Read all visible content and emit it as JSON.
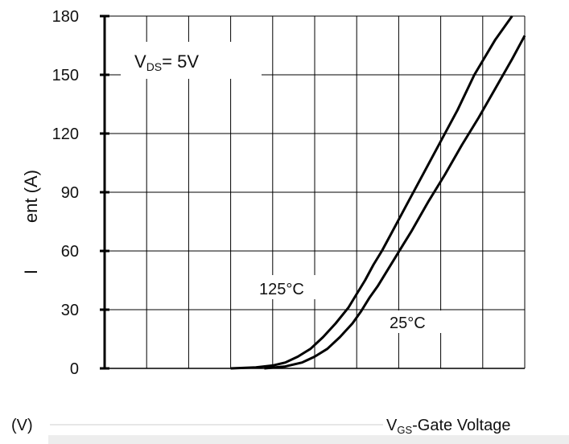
{
  "chart_data": {
    "type": "line",
    "ylabel": "ent (A)",
    "ylabel_subscript_symbol": "I",
    "xlabel_prefix": "(V)",
    "xlabel": "V",
    "xlabel_sub": "GS",
    "xlabel_rest": "-Gate Voltage",
    "annotation": {
      "main": "V",
      "sub": "DS",
      "rest": "= 5V"
    },
    "yticks": [
      0,
      30,
      60,
      90,
      120,
      150,
      180
    ],
    "ylim": [
      0,
      180
    ],
    "xlim": [
      0,
      10
    ],
    "xticks": [
      1.0,
      2.0,
      3.0,
      4.0,
      5.0,
      6.0,
      7.0,
      8.0,
      9.0,
      10.0
    ],
    "grid": true,
    "series": [
      {
        "name": "125°C",
        "x": [
          3.0,
          3.6,
          4.0,
          4.3,
          4.6,
          4.9,
          5.2,
          5.5,
          5.8,
          6.0,
          6.2,
          6.4,
          6.6,
          6.8,
          7.0,
          7.2,
          7.6,
          8.0,
          8.4,
          8.8,
          9.3,
          9.7
        ],
        "y": [
          0,
          0.5,
          1.5,
          3,
          6,
          10,
          16,
          23,
          31,
          38,
          45,
          53,
          60,
          68,
          76,
          84,
          100,
          116,
          132,
          150,
          168,
          180
        ]
      },
      {
        "name": "25°C",
        "x": [
          3.8,
          4.3,
          4.7,
          5.0,
          5.3,
          5.6,
          5.9,
          6.1,
          6.3,
          6.5,
          6.7,
          6.9,
          7.1,
          7.3,
          7.7,
          8.1,
          8.5,
          8.9,
          9.3,
          9.7,
          10.0
        ],
        "y": [
          0,
          1,
          3,
          6,
          10,
          16,
          23,
          29,
          36,
          42,
          49,
          56,
          63,
          70,
          85,
          99,
          114,
          128,
          143,
          158,
          170
        ]
      }
    ],
    "series_labels": [
      "125°C",
      "25°C"
    ],
    "colors": {
      "axis": "#000000",
      "grid": "#000000",
      "line": "#000000",
      "text": "#111111"
    }
  }
}
